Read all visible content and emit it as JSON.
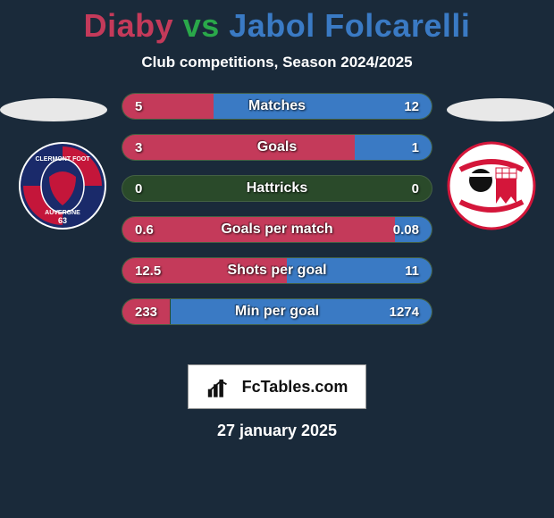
{
  "title_player1": "Diaby",
  "title_vs": "vs",
  "title_player2": "Jabol Folcarelli",
  "title_color_player1": "#c43a5a",
  "title_color_vs": "#2aa84a",
  "title_color_player2": "#3a7ac4",
  "subtitle": "Club competitions, Season 2024/2025",
  "date": "27 january 2025",
  "brand": "FcTables.com",
  "bar_track_color": "#2a4a2a",
  "left_fill_color": "#c43a5a",
  "right_fill_color": "#3a7ac4",
  "shadow_color": "#e8e8e8",
  "background_color": "#1a2a3a",
  "team_left": {
    "name": "Clermont Foot Auvergne 63",
    "crest_bg": "#1a2a6a",
    "crest_accent": "#c4163a",
    "crest_text_top": "CLERMONT FOOT",
    "crest_text_mid": "AUVERGNE",
    "crest_text_num": "63"
  },
  "team_right": {
    "name": "AC Ajaccio",
    "crest_bg": "#ffffff",
    "crest_accent": "#d4163a",
    "crest_symbol": "moor-head"
  },
  "stats": [
    {
      "label": "Matches",
      "left_val": "5",
      "right_val": "12",
      "left_num": 5,
      "right_num": 12
    },
    {
      "label": "Goals",
      "left_val": "3",
      "right_val": "1",
      "left_num": 3,
      "right_num": 1
    },
    {
      "label": "Hattricks",
      "left_val": "0",
      "right_val": "0",
      "left_num": 0,
      "right_num": 0
    },
    {
      "label": "Goals per match",
      "left_val": "0.6",
      "right_val": "0.08",
      "left_num": 0.6,
      "right_num": 0.08
    },
    {
      "label": "Shots per goal",
      "left_val": "12.5",
      "right_val": "11",
      "left_num": 12.5,
      "right_num": 11
    },
    {
      "label": "Min per goal",
      "left_val": "233",
      "right_val": "1274",
      "left_num": 233,
      "right_num": 1274
    }
  ],
  "bar_style": {
    "height": 30,
    "border_radius": 15,
    "gap": 16,
    "label_fontsize": 16,
    "value_fontsize": 15
  }
}
